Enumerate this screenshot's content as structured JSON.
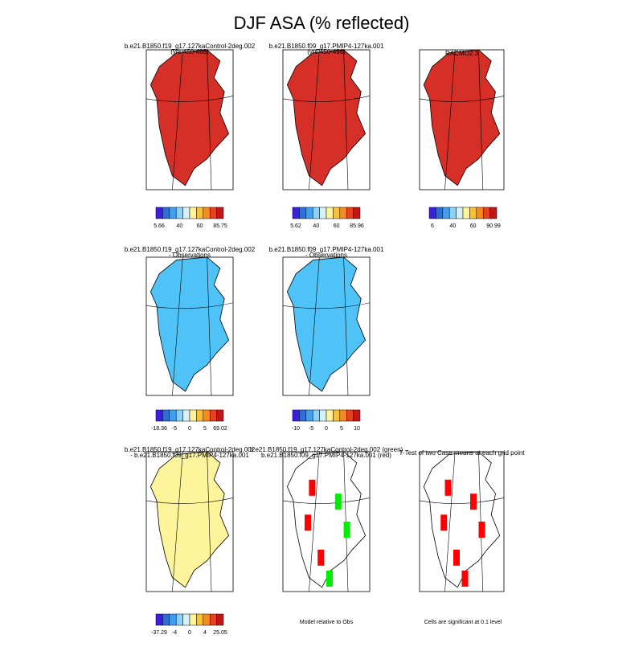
{
  "title": "DJF ASA (% reflected)",
  "panels": [
    {
      "title": [
        "b.e21.B1850.f19_g17.127kaControl-2deg.002",
        "(yrs 450-498)"
      ],
      "colorbar_labels": [
        5.66,
        40,
        60,
        85.75
      ]
    },
    {
      "title": [
        "b.e21.B1850.f09_g17.PMIP4-127ka.001",
        "(yrs 450-498)"
      ],
      "colorbar_labels": [
        5.62,
        40,
        60,
        85.96
      ]
    },
    {
      "title": [
        "RACMO2.3"
      ],
      "colorbar_labels": [
        6,
        40,
        60,
        90.99
      ]
    },
    {
      "title": [
        "b.e21.B1850.f19_g17.127kaControl-2deg.002",
        "- Observations"
      ],
      "colorbar_labels": [
        -18.36,
        -5,
        0,
        5,
        69.02
      ]
    },
    {
      "title": [
        "b.e21.B1850.f09_g17.PMIP4-127ka.001",
        "- Observations"
      ],
      "colorbar_labels": [
        -10,
        -5,
        0,
        5,
        10
      ]
    },
    {
      "title": [
        "b.e21.B1850.f19_g17.127kaControl-2deg.002",
        "- b.e21.B1850.f09_g17.PMIP4-127ka.001"
      ],
      "colorbar_labels": [
        -37.29,
        -4,
        0,
        4,
        25.05
      ]
    },
    {
      "title": [
        "b.e21.B1850.f19_g17.127kaControl-2deg.002 (green)",
        "b.e21.B1850.f09_g17.PMIP4-127ka.001 (red)"
      ]
    },
    {
      "title": [
        "T-Test of two Case means at each grid point"
      ]
    }
  ],
  "notes": [
    "Model relative to Obs",
    "Cells are significant at 0.1 level"
  ]
}
